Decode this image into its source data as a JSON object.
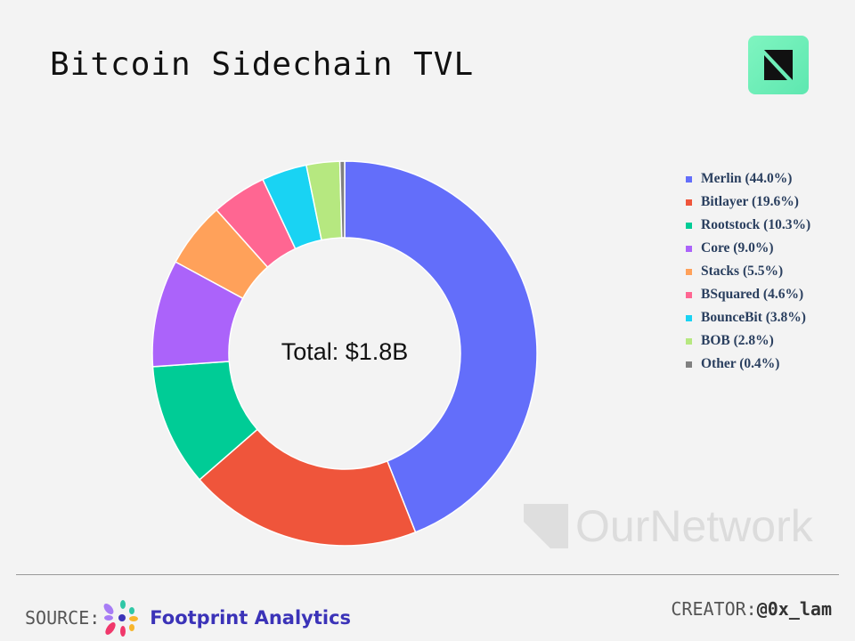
{
  "title": "Bitcoin Sidechain TVL",
  "chart_data": {
    "type": "pie",
    "hole": true,
    "center_label": "Total: $1.8B",
    "legend_position": "right",
    "categories": [
      "Merlin",
      "Bitlayer",
      "Rootstock",
      "Core",
      "Stacks",
      "BSquared",
      "BounceBit",
      "BOB",
      "Other"
    ],
    "values": [
      44.0,
      19.6,
      10.3,
      9.0,
      5.5,
      4.6,
      3.8,
      2.8,
      0.4
    ],
    "legend_labels": [
      "Merlin (44.0%)",
      "Bitlayer (19.6%)",
      "Rootstock (10.3%)",
      "Core (9.0%)",
      "Stacks (5.5%)",
      "BSquared (4.6%)",
      "BounceBit (3.8%)",
      "BOB (2.8%)",
      "Other (0.4%)"
    ],
    "colors": [
      "#636efa",
      "#ef553b",
      "#00cc96",
      "#ab63fa",
      "#ffa15a",
      "#ff6692",
      "#19d3f3",
      "#b6e880",
      "#808080"
    ]
  },
  "watermark": "OurNetwork",
  "footer": {
    "source_label": "SOURCE:",
    "source_name": "Footprint Analytics",
    "creator_label": "CREATOR:",
    "creator_handle": "@0x_lam"
  }
}
